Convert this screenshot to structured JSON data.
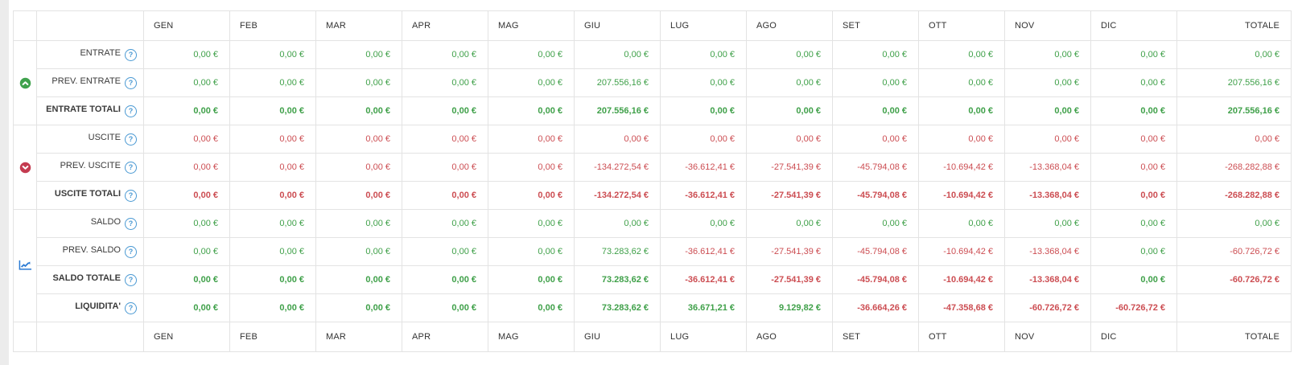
{
  "colors": {
    "positive": "#3fa049",
    "negative": "#cc4d52",
    "help_icon": "#4a99d3",
    "entrate_icon": "#3fa24d",
    "uscite_icon": "#c43b50",
    "saldo_icon": "#2b7bd4",
    "border": "#e3e3e3",
    "header_text": "#333333"
  },
  "table": {
    "months": [
      "GEN",
      "FEB",
      "MAR",
      "APR",
      "MAG",
      "GIU",
      "LUG",
      "AGO",
      "SET",
      "OTT",
      "NOV",
      "DIC"
    ],
    "total_label": "TOTALE",
    "groups": [
      {
        "icon": "chevron-up-circle-icon",
        "rows": [
          {
            "label": "ENTRATE",
            "bold": false,
            "tone": "auto",
            "values": [
              "0,00 €",
              "0,00 €",
              "0,00 €",
              "0,00 €",
              "0,00 €",
              "0,00 €",
              "0,00 €",
              "0,00 €",
              "0,00 €",
              "0,00 €",
              "0,00 €",
              "0,00 €"
            ],
            "total": "0,00 €"
          },
          {
            "label": "PREV. ENTRATE",
            "bold": false,
            "tone": "auto",
            "values": [
              "0,00 €",
              "0,00 €",
              "0,00 €",
              "0,00 €",
              "0,00 €",
              "207.556,16 €",
              "0,00 €",
              "0,00 €",
              "0,00 €",
              "0,00 €",
              "0,00 €",
              "0,00 €"
            ],
            "total": "207.556,16 €"
          },
          {
            "label": "ENTRATE TOTALI",
            "bold": true,
            "tone": "auto",
            "values": [
              "0,00 €",
              "0,00 €",
              "0,00 €",
              "0,00 €",
              "0,00 €",
              "207.556,16 €",
              "0,00 €",
              "0,00 €",
              "0,00 €",
              "0,00 €",
              "0,00 €",
              "0,00 €"
            ],
            "total": "207.556,16 €"
          }
        ]
      },
      {
        "icon": "chevron-down-circle-icon",
        "rows": [
          {
            "label": "USCITE",
            "bold": false,
            "tone": "red",
            "values": [
              "0,00 €",
              "0,00 €",
              "0,00 €",
              "0,00 €",
              "0,00 €",
              "0,00 €",
              "0,00 €",
              "0,00 €",
              "0,00 €",
              "0,00 €",
              "0,00 €",
              "0,00 €"
            ],
            "total": "0,00 €"
          },
          {
            "label": "PREV. USCITE",
            "bold": false,
            "tone": "red",
            "values": [
              "0,00 €",
              "0,00 €",
              "0,00 €",
              "0,00 €",
              "0,00 €",
              "-134.272,54 €",
              "-36.612,41 €",
              "-27.541,39 €",
              "-45.794,08 €",
              "-10.694,42 €",
              "-13.368,04 €",
              "0,00 €"
            ],
            "total": "-268.282,88 €"
          },
          {
            "label": "USCITE TOTALI",
            "bold": true,
            "tone": "red",
            "values": [
              "0,00 €",
              "0,00 €",
              "0,00 €",
              "0,00 €",
              "0,00 €",
              "-134.272,54 €",
              "-36.612,41 €",
              "-27.541,39 €",
              "-45.794,08 €",
              "-10.694,42 €",
              "-13.368,04 €",
              "0,00 €"
            ],
            "total": "-268.282,88 €"
          }
        ]
      },
      {
        "icon": "trend-line-icon",
        "rows": [
          {
            "label": "SALDO",
            "bold": false,
            "tone": "auto",
            "values": [
              "0,00 €",
              "0,00 €",
              "0,00 €",
              "0,00 €",
              "0,00 €",
              "0,00 €",
              "0,00 €",
              "0,00 €",
              "0,00 €",
              "0,00 €",
              "0,00 €",
              "0,00 €"
            ],
            "total": "0,00 €"
          },
          {
            "label": "PREV. SALDO",
            "bold": false,
            "tone": "auto",
            "values": [
              "0,00 €",
              "0,00 €",
              "0,00 €",
              "0,00 €",
              "0,00 €",
              "73.283,62 €",
              "-36.612,41 €",
              "-27.541,39 €",
              "-45.794,08 €",
              "-10.694,42 €",
              "-13.368,04 €",
              "0,00 €"
            ],
            "total": "-60.726,72 €"
          },
          {
            "label": "SALDO TOTALE",
            "bold": true,
            "tone": "auto",
            "values": [
              "0,00 €",
              "0,00 €",
              "0,00 €",
              "0,00 €",
              "0,00 €",
              "73.283,62 €",
              "-36.612,41 €",
              "-27.541,39 €",
              "-45.794,08 €",
              "-10.694,42 €",
              "-13.368,04 €",
              "0,00 €"
            ],
            "total": "-60.726,72 €"
          },
          {
            "label": "LIQUIDITA'",
            "bold": true,
            "tone": "auto",
            "values": [
              "0,00 €",
              "0,00 €",
              "0,00 €",
              "0,00 €",
              "0,00 €",
              "73.283,62 €",
              "36.671,21 €",
              "9.129,82 €",
              "-36.664,26 €",
              "-47.358,68 €",
              "-60.726,72 €",
              "-60.726,72 €"
            ],
            "total": ""
          }
        ]
      }
    ]
  }
}
